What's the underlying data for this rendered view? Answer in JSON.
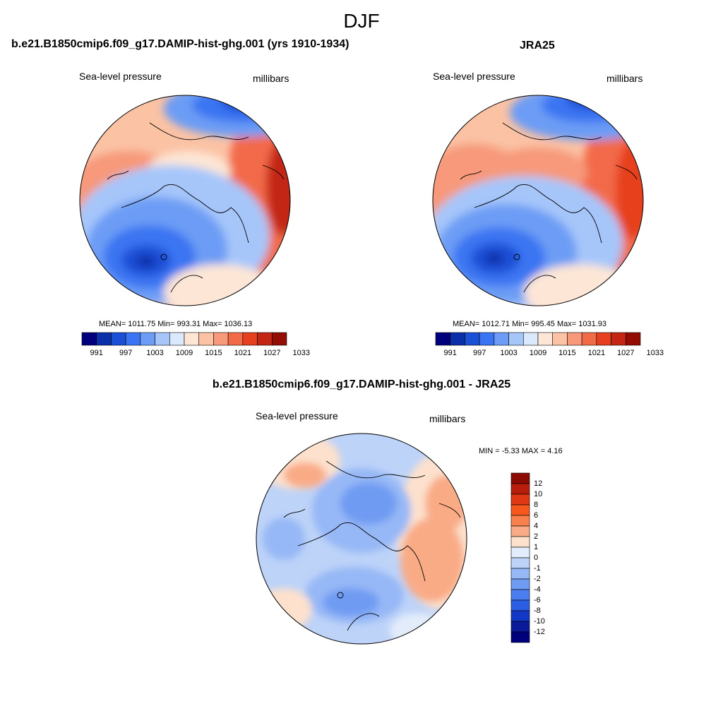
{
  "figure": {
    "season": "DJF"
  },
  "panels": [
    {
      "title": "b.e21.B1850cmip6.f09_g17.DAMIP-hist-ghg.001 (yrs 1910-1934)",
      "left_label": "Sea-level pressure",
      "right_label": "millibars",
      "stats": "MEAN= 1011.75  Min= 993.31  Max= 1036.13",
      "colorbar_ticks": [
        "991",
        "997",
        "1003",
        "1009",
        "1015",
        "1021",
        "1027",
        "1033"
      ]
    },
    {
      "title": "JRA25",
      "left_label": "Sea-level pressure",
      "right_label": "millibars",
      "stats": "MEAN= 1012.71  Min= 995.45  Max= 1031.93",
      "colorbar_ticks": [
        "991",
        "997",
        "1003",
        "1009",
        "1015",
        "1021",
        "1027",
        "1033"
      ]
    },
    {
      "title": "b.e21.B1850cmip6.f09_g17.DAMIP-hist-ghg.001 - JRA25",
      "left_label": "Sea-level pressure",
      "right_label": "millibars",
      "stats": "MIN =  -5.33 MAX =   4.16",
      "colorbar_ticks": [
        "12",
        "10",
        "8",
        "6",
        "4",
        "2",
        "1",
        "0",
        "-1",
        "-2",
        "-4",
        "-6",
        "-8",
        "-10",
        "-12"
      ]
    }
  ],
  "colors": {
    "abs_scale": [
      "#00007d",
      "#0a2fa8",
      "#1a4fd6",
      "#3a74f2",
      "#6c9cf5",
      "#a6c6fa",
      "#dbe9fc",
      "#fde6d6",
      "#fbc2a4",
      "#f7997a",
      "#f26b48",
      "#e6401f",
      "#c42614",
      "#930d05"
    ],
    "diff_scale": [
      "#8c0a04",
      "#b81c0b",
      "#de3814",
      "#f5571c",
      "#f7804d",
      "#f9ab86",
      "#fde1cd",
      "#e3ecfa",
      "#bdd3f8",
      "#96b8f6",
      "#6f9bf2",
      "#4a7df0",
      "#2b5ee4",
      "#1338c8",
      "#0a1a99",
      "#00007d"
    ]
  }
}
